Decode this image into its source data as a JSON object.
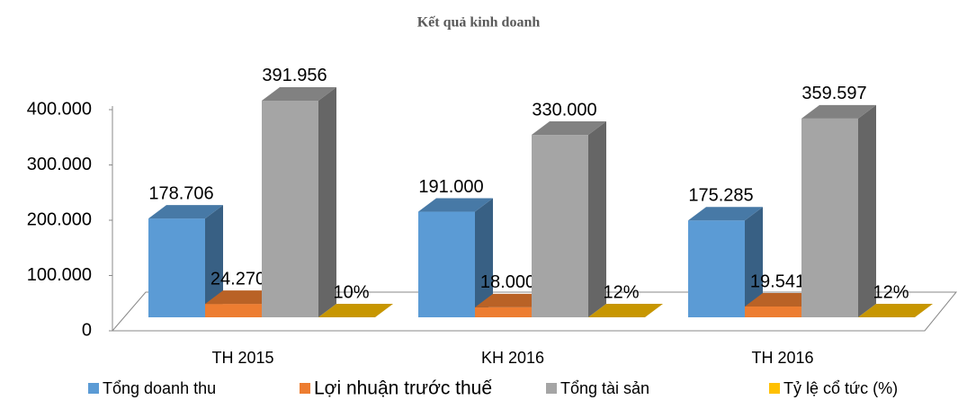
{
  "chart_data": {
    "type": "bar3d",
    "title": "Kết quả kinh doanh",
    "categories": [
      "TH 2015",
      "KH 2016",
      "TH 2016"
    ],
    "series": [
      {
        "name": "Tổng doanh thu",
        "color": "#5b9bd5",
        "values": [
          178706,
          191000,
          175285
        ],
        "value_labels": [
          "178.706",
          "191.000",
          "175.285"
        ]
      },
      {
        "name": "Lợi nhuận trước thuế",
        "color": "#ed7d31",
        "values": [
          24270,
          18000,
          19541
        ],
        "value_labels": [
          "24.270",
          "18.000",
          "19.541"
        ]
      },
      {
        "name": "Tổng tài sản",
        "color": "#a5a5a5",
        "values": [
          391956,
          330000,
          359597
        ],
        "value_labels": [
          "391.956",
          "330.000",
          "359.597"
        ]
      },
      {
        "name": "Tỷ lệ cổ tức (%)",
        "color": "#ffc000",
        "values": [
          10,
          12,
          12
        ],
        "value_labels": [
          "10%",
          "12%",
          "12%"
        ]
      }
    ],
    "ylim": [
      0,
      400000
    ],
    "yticks": [
      0,
      {
        "value": 100000,
        "label": "100.000"
      },
      {
        "value": 200000,
        "label": "200.000"
      },
      {
        "value": 300000,
        "label": "300.000"
      },
      {
        "value": 400000,
        "label": "400.000"
      }
    ],
    "legend": "bottom"
  }
}
